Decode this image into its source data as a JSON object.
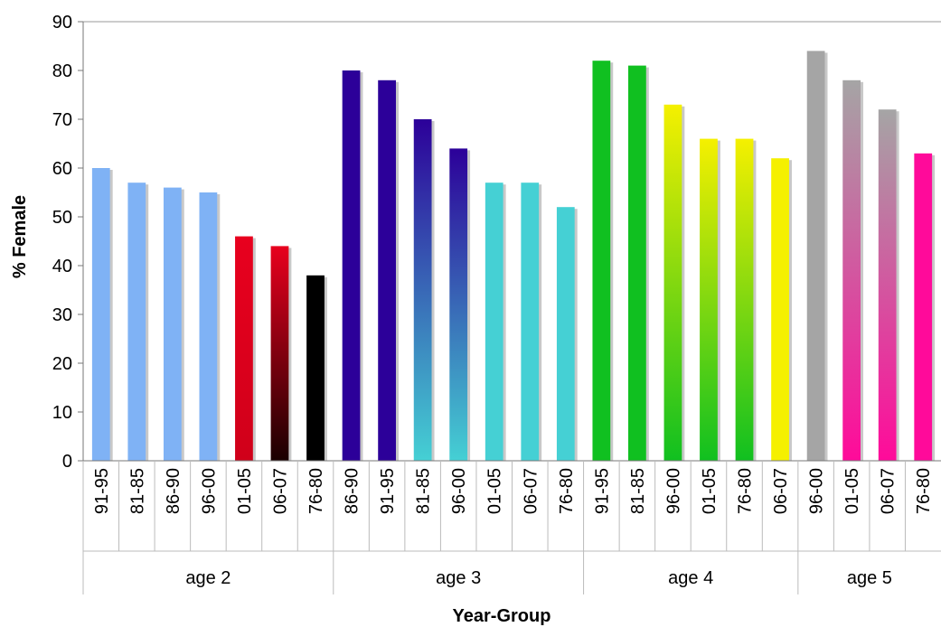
{
  "chart_data": {
    "type": "bar",
    "title": "",
    "xlabel": "Year-Group",
    "ylabel": "% Female",
    "ylim": [
      0,
      90
    ],
    "yticks": [
      0,
      10,
      20,
      30,
      40,
      50,
      60,
      70,
      80,
      90
    ],
    "grid": false,
    "legend": "none",
    "groups": [
      {
        "name": "age 2",
        "bars": [
          {
            "label": "91-95",
            "value": 60,
            "colors": [
              "#7FB2F5",
              "#7FB2F5"
            ]
          },
          {
            "label": "81-85",
            "value": 57,
            "colors": [
              "#7FB2F5",
              "#7FB2F5"
            ]
          },
          {
            "label": "86-90",
            "value": 56,
            "colors": [
              "#7FB2F5",
              "#7FB2F5"
            ]
          },
          {
            "label": "96-00",
            "value": 55,
            "colors": [
              "#7FB2F5",
              "#7FB2F5"
            ]
          },
          {
            "label": "01-05",
            "value": 46,
            "colors": [
              "#E8001E",
              "#D0001A"
            ]
          },
          {
            "label": "06-07",
            "value": 44,
            "colors": [
              "#E8001E",
              "#1A0000"
            ]
          },
          {
            "label": "76-80",
            "value": 38,
            "colors": [
              "#000000",
              "#000000"
            ]
          }
        ]
      },
      {
        "name": "age 3",
        "bars": [
          {
            "label": "86-90",
            "value": 80,
            "colors": [
              "#2C0099",
              "#2C0099"
            ]
          },
          {
            "label": "91-95",
            "value": 78,
            "colors": [
              "#2C0099",
              "#2C0099"
            ]
          },
          {
            "label": "81-85",
            "value": 70,
            "colors": [
              "#2C0099",
              "#45D0D4"
            ]
          },
          {
            "label": "96-00",
            "value": 64,
            "colors": [
              "#2C0099",
              "#45D0D4"
            ]
          },
          {
            "label": "01-05",
            "value": 57,
            "colors": [
              "#45D0D4",
              "#45D0D4"
            ]
          },
          {
            "label": "06-07",
            "value": 57,
            "colors": [
              "#45D0D4",
              "#45D0D4"
            ]
          },
          {
            "label": "76-80",
            "value": 52,
            "colors": [
              "#45D0D4",
              "#45D0D4"
            ]
          }
        ]
      },
      {
        "name": "age 4",
        "bars": [
          {
            "label": "91-95",
            "value": 82,
            "colors": [
              "#10C020",
              "#10C020"
            ]
          },
          {
            "label": "81-85",
            "value": 81,
            "colors": [
              "#10C020",
              "#10C020"
            ]
          },
          {
            "label": "96-00",
            "value": 73,
            "colors": [
              "#F5F000",
              "#10C020"
            ]
          },
          {
            "label": "01-05",
            "value": 66,
            "colors": [
              "#F5F000",
              "#10C020"
            ]
          },
          {
            "label": "76-80",
            "value": 66,
            "colors": [
              "#F5F000",
              "#10C020"
            ]
          },
          {
            "label": "06-07",
            "value": 62,
            "colors": [
              "#F5F000",
              "#F5F000"
            ]
          }
        ]
      },
      {
        "name": "age 5",
        "bars": [
          {
            "label": "96-00",
            "value": 84,
            "colors": [
              "#A5A5A5",
              "#A5A5A5"
            ]
          },
          {
            "label": "01-05",
            "value": 78,
            "colors": [
              "#A5A5A5",
              "#FF0A9A"
            ]
          },
          {
            "label": "06-07",
            "value": 72,
            "colors": [
              "#A5A5A5",
              "#FF0A9A"
            ]
          },
          {
            "label": "76-80",
            "value": 63,
            "colors": [
              "#FF0A9A",
              "#FF0A9A"
            ]
          }
        ]
      }
    ]
  }
}
